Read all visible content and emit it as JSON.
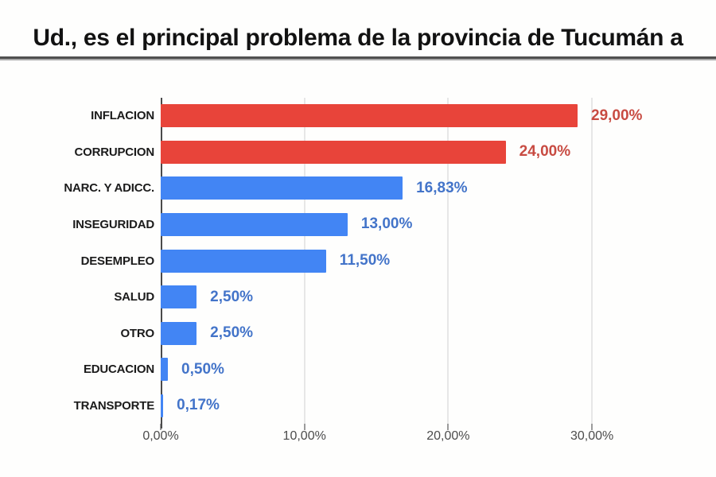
{
  "title": "Ud., es el principal problema de la provincia de Tucumán a",
  "chart_data": {
    "type": "bar",
    "orientation": "horizontal",
    "title": "Ud., es el principal problema de la provincia de Tucumán a",
    "categories": [
      "INFLACION",
      "CORRUPCION",
      "NARC. Y ADICC.",
      "INSEGURIDAD",
      "DESEMPLEO",
      "SALUD",
      "OTRO",
      "EDUCACION",
      "TRANSPORTE"
    ],
    "values": [
      29.0,
      24.0,
      16.83,
      13.0,
      11.5,
      2.5,
      2.5,
      0.5,
      0.17
    ],
    "value_labels": [
      "29,00%",
      "24,00%",
      "16,83%",
      "13,00%",
      "11,50%",
      "2,50%",
      "2,50%",
      "0,50%",
      "0,17%"
    ],
    "bar_color_keys": [
      "red",
      "red",
      "blue",
      "blue",
      "blue",
      "blue",
      "blue",
      "blue",
      "blue"
    ],
    "colors": {
      "red_bar": "#e8443a",
      "blue_bar": "#4285f4",
      "red_label": "#c84b42",
      "blue_label": "#4374c9",
      "gridline": "#e7e7e7",
      "axis": "#4a4a4a"
    },
    "x_ticks": [
      {
        "label": "0,00%",
        "value": 0
      },
      {
        "label": "10,00%",
        "value": 10
      },
      {
        "label": "20,00%",
        "value": 20
      },
      {
        "label": "30,00%",
        "value": 30
      }
    ],
    "xlim": [
      0,
      36.7
    ],
    "grid": true,
    "legend": "none"
  }
}
